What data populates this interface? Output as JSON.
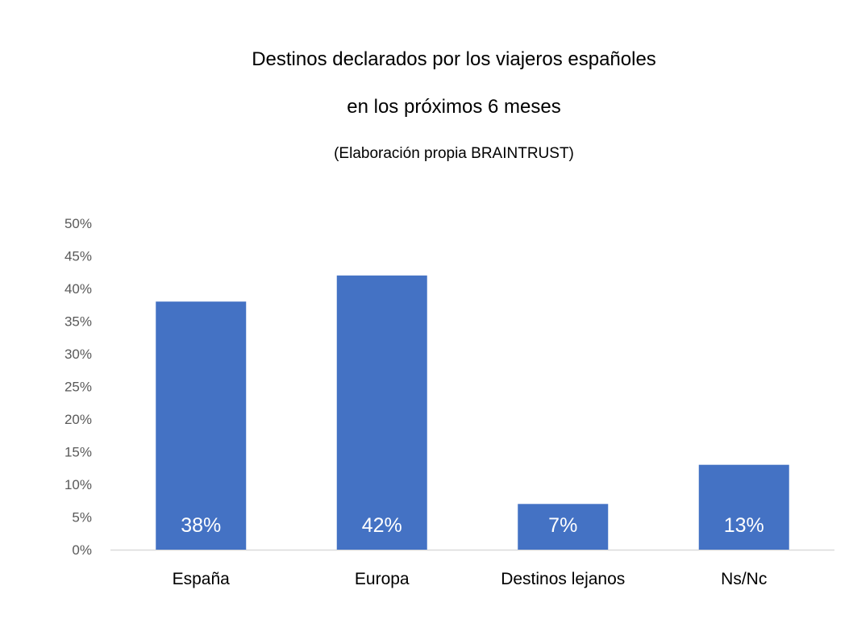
{
  "chart_data": {
    "type": "bar",
    "title_lines": [
      "Destinos declarados por los viajeros españoles",
      "en los próximos 6 meses"
    ],
    "subtitle": "(Elaboración propia BRAINTRUST)",
    "categories": [
      "España",
      "Europa",
      "Destinos lejanos",
      "Ns/Nc"
    ],
    "values": [
      38,
      42,
      7,
      13
    ],
    "data_labels": [
      "38%",
      "42%",
      "7%",
      "13%"
    ],
    "ylim": [
      0,
      50
    ],
    "y_ticks": [
      "0%",
      "5%",
      "10%",
      "15%",
      "20%",
      "25%",
      "30%",
      "35%",
      "40%",
      "45%",
      "50%"
    ],
    "grid": false,
    "legend": "none",
    "bar_color": "#4472C4",
    "data_label_color": "#FFFFFF",
    "axis_color": "#D9D9D9",
    "tick_label_color": "#595959",
    "category_label_color": "#000000"
  }
}
